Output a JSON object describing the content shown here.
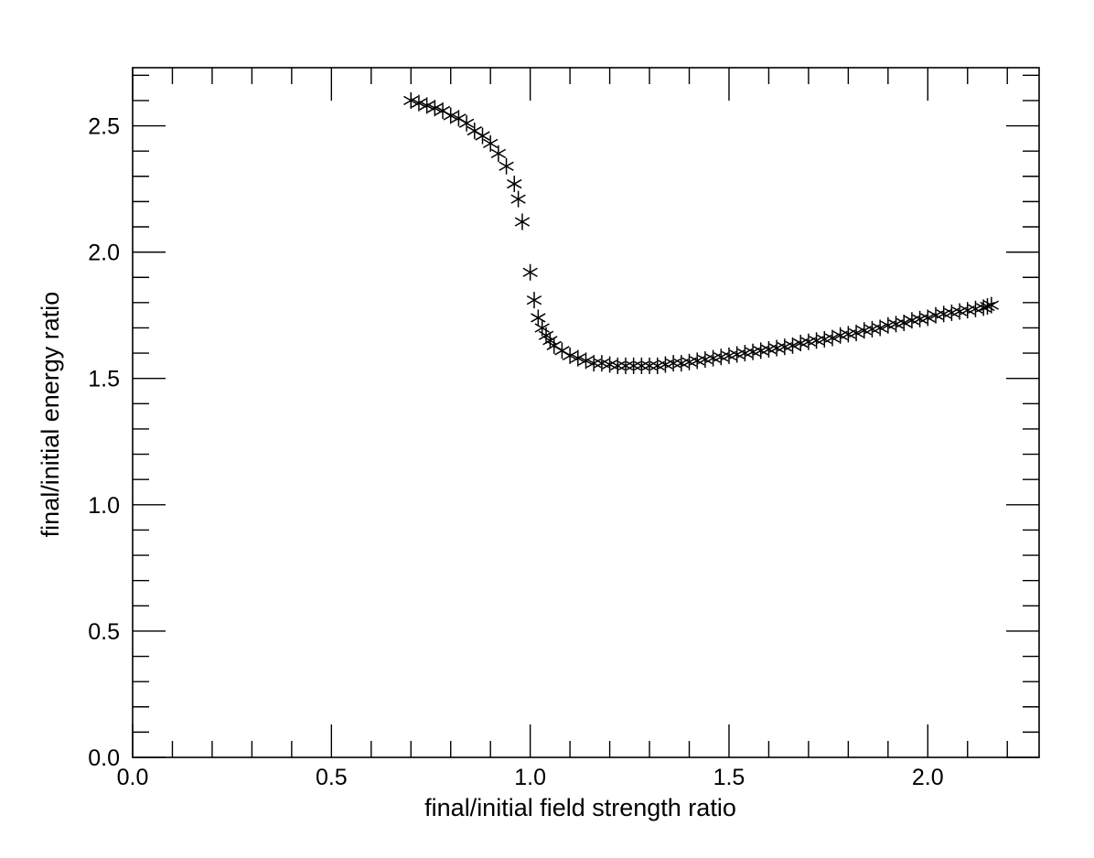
{
  "chart_data": {
    "type": "scatter",
    "title": "",
    "xlabel": "final/initial field strength ratio",
    "ylabel": "final/initial energy ratio",
    "xlim": [
      0.0,
      2.28
    ],
    "ylim": [
      0.0,
      2.73
    ],
    "xticks": [
      0.0,
      0.5,
      1.0,
      1.5,
      2.0
    ],
    "xtick_labels": [
      "0.0",
      "0.5",
      "1.0",
      "1.5",
      "2.0"
    ],
    "yticks": [
      0.0,
      0.5,
      1.0,
      1.5,
      2.0,
      2.5
    ],
    "ytick_labels": [
      "0.0",
      "0.5",
      "1.0",
      "1.5",
      "2.0",
      "2.5"
    ],
    "marker": "asterisk",
    "grid": false,
    "legend": "none",
    "series": [
      {
        "points": [
          [
            0.7,
            2.6
          ],
          [
            0.72,
            2.59
          ],
          [
            0.74,
            2.58
          ],
          [
            0.76,
            2.57
          ],
          [
            0.78,
            2.56
          ],
          [
            0.8,
            2.54
          ],
          [
            0.82,
            2.53
          ],
          [
            0.84,
            2.51
          ],
          [
            0.86,
            2.48
          ],
          [
            0.88,
            2.46
          ],
          [
            0.9,
            2.43
          ],
          [
            0.92,
            2.39
          ],
          [
            0.94,
            2.34
          ],
          [
            0.96,
            2.27
          ],
          [
            0.97,
            2.21
          ],
          [
            0.98,
            2.12
          ],
          [
            1.0,
            1.92
          ],
          [
            1.01,
            1.81
          ],
          [
            1.02,
            1.74
          ],
          [
            1.03,
            1.7
          ],
          [
            1.04,
            1.67
          ],
          [
            1.05,
            1.65
          ],
          [
            1.06,
            1.63
          ],
          [
            1.08,
            1.61
          ],
          [
            1.1,
            1.59
          ],
          [
            1.12,
            1.58
          ],
          [
            1.14,
            1.57
          ],
          [
            1.16,
            1.56
          ],
          [
            1.18,
            1.56
          ],
          [
            1.2,
            1.555
          ],
          [
            1.22,
            1.55
          ],
          [
            1.24,
            1.55
          ],
          [
            1.26,
            1.55
          ],
          [
            1.28,
            1.55
          ],
          [
            1.3,
            1.55
          ],
          [
            1.32,
            1.55
          ],
          [
            1.34,
            1.555
          ],
          [
            1.36,
            1.56
          ],
          [
            1.38,
            1.56
          ],
          [
            1.4,
            1.565
          ],
          [
            1.42,
            1.57
          ],
          [
            1.44,
            1.575
          ],
          [
            1.46,
            1.58
          ],
          [
            1.48,
            1.585
          ],
          [
            1.5,
            1.59
          ],
          [
            1.52,
            1.595
          ],
          [
            1.54,
            1.6
          ],
          [
            1.56,
            1.605
          ],
          [
            1.58,
            1.61
          ],
          [
            1.6,
            1.615
          ],
          [
            1.62,
            1.62
          ],
          [
            1.64,
            1.625
          ],
          [
            1.66,
            1.63
          ],
          [
            1.68,
            1.64
          ],
          [
            1.7,
            1.645
          ],
          [
            1.72,
            1.65
          ],
          [
            1.74,
            1.655
          ],
          [
            1.76,
            1.66
          ],
          [
            1.78,
            1.67
          ],
          [
            1.8,
            1.675
          ],
          [
            1.82,
            1.68
          ],
          [
            1.84,
            1.69
          ],
          [
            1.86,
            1.695
          ],
          [
            1.88,
            1.7
          ],
          [
            1.9,
            1.71
          ],
          [
            1.92,
            1.715
          ],
          [
            1.94,
            1.72
          ],
          [
            1.96,
            1.73
          ],
          [
            1.98,
            1.735
          ],
          [
            2.0,
            1.74
          ],
          [
            2.02,
            1.75
          ],
          [
            2.04,
            1.755
          ],
          [
            2.06,
            1.76
          ],
          [
            2.08,
            1.765
          ],
          [
            2.1,
            1.77
          ],
          [
            2.12,
            1.775
          ],
          [
            2.14,
            1.78
          ],
          [
            2.15,
            1.785
          ],
          [
            2.16,
            1.79
          ]
        ]
      }
    ]
  }
}
